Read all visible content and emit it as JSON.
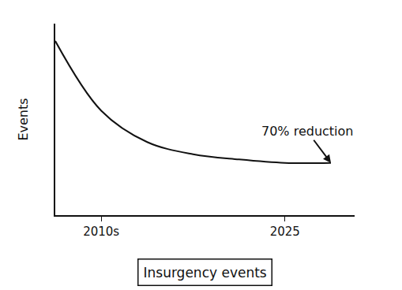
{
  "chart_data": {
    "type": "line",
    "title": "Insurgency events",
    "y_label": "Events",
    "categories": [
      null,
      "2010s",
      null,
      null,
      null,
      "2025",
      null
    ],
    "values": [
      100,
      60,
      42,
      35,
      32,
      30,
      30
    ],
    "annotation": "70% reduction",
    "color": "#111111",
    "ylim": [
      0,
      110
    ],
    "yticks": [],
    "grid": false,
    "tick_labels": "x",
    "line_style": "solid"
  }
}
